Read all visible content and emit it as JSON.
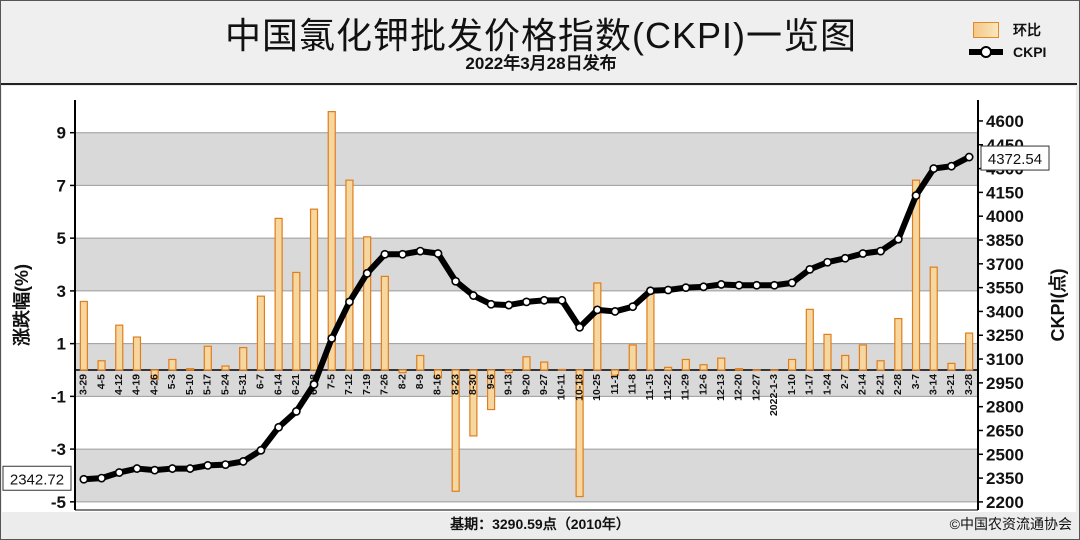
{
  "title": "中国氯化钾批发价格指数(CKPI)一览图",
  "subtitle": "2022年3月28日发布",
  "legend": {
    "bar_label": "环比",
    "line_label": "CKPI"
  },
  "footer": {
    "base_note": "基期：3290.59点（2010年）",
    "copyright": "©中国农资流通协会"
  },
  "colors": {
    "bar_fill": "#f6d7a0",
    "bar_stroke": "#e07d1c",
    "line": "#000000",
    "band": "#d9d9d9"
  },
  "chart_data": {
    "type": "bar+line",
    "ylabel_left": "涨跌幅(%)",
    "ylabel_right": "CKPI(点)",
    "yticks_left": [
      9,
      7,
      5,
      3,
      1,
      -1,
      -3,
      -5
    ],
    "yticks_right": [
      4600,
      4450,
      4300,
      4150,
      4000,
      3850,
      3700,
      3550,
      3400,
      3250,
      3100,
      2950,
      2800,
      2650,
      2500,
      2350,
      2200
    ],
    "ylim_left": [
      -5.31,
      10.24
    ],
    "ylim_right": [
      2149,
      4732
    ],
    "categories": [
      "3-29",
      "4-5",
      "4-12",
      "4-19",
      "4-26",
      "5-3",
      "5-10",
      "5-17",
      "5-24",
      "5-31",
      "6-7",
      "6-14",
      "6-21",
      "6-28",
      "7-5",
      "7-12",
      "7-19",
      "7-26",
      "8-2",
      "8-9",
      "8-16",
      "8-23",
      "8-30",
      "9-6",
      "9-13",
      "9-20",
      "9-27",
      "10-11",
      "10-18",
      "10-25",
      "11-1",
      "11-8",
      "11-15",
      "11-22",
      "11-29",
      "12-6",
      "12-13",
      "12-20",
      "12-27",
      "2022-1-3",
      "1-10",
      "1-17",
      "1-24",
      "2-7",
      "2-14",
      "2-21",
      "2-28",
      "3-7",
      "3-14",
      "3-21",
      "3-28"
    ],
    "series": [
      {
        "name": "环比",
        "type": "bar",
        "axis": "left",
        "values": [
          2.6,
          0.35,
          1.7,
          1.25,
          -0.35,
          0.4,
          0.05,
          0.9,
          0.15,
          0.85,
          2.8,
          5.75,
          3.7,
          6.1,
          9.8,
          7.2,
          5.05,
          3.55,
          -0.1,
          0.55,
          -0.3,
          -4.6,
          -2.5,
          -1.5,
          -0.1,
          0.5,
          0.3,
          0.02,
          -4.8,
          3.3,
          -0.2,
          0.95,
          3.0,
          0.1,
          0.4,
          0.2,
          0.45,
          0.05,
          0.0,
          0.0,
          0.4,
          2.3,
          1.35,
          0.55,
          0.95,
          0.35,
          1.95,
          7.2,
          3.9,
          0.25,
          1.4
        ]
      },
      {
        "name": "CKPI",
        "type": "line",
        "axis": "right",
        "values": [
          2342.72,
          2350,
          2385,
          2410,
          2400,
          2410,
          2410,
          2430,
          2435,
          2455,
          2525,
          2670,
          2770,
          2940,
          3230,
          3460,
          3640,
          3760,
          3760,
          3780,
          3765,
          3590,
          3500,
          3445,
          3440,
          3460,
          3470,
          3470,
          3300,
          3410,
          3400,
          3430,
          3530,
          3535,
          3550,
          3555,
          3570,
          3565,
          3565,
          3565,
          3580,
          3665,
          3710,
          3735,
          3765,
          3780,
          3855,
          4130,
          4300,
          4315,
          4372.54
        ]
      }
    ],
    "annotations": [
      "2342.72",
      "4372.54"
    ]
  }
}
